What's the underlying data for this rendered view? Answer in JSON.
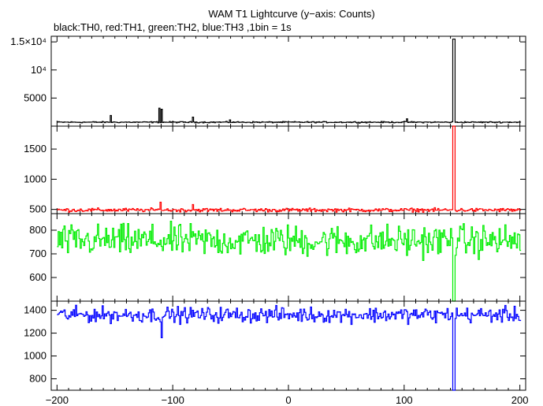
{
  "title": "WAM T1 Lightcurve (y−axis: Counts)",
  "subtitle": "black:TH0, red:TH1, green:TH2, blue:TH3 ,1bin = 1s",
  "chart_data": {
    "type": "line",
    "x_ticks": [
      "−200",
      "−100",
      "0",
      "100",
      "200"
    ],
    "x_tick_values": [
      -200,
      -100,
      0,
      100,
      200
    ],
    "xlim": [
      -205,
      205
    ],
    "panels": [
      {
        "name": "TH0",
        "color": "#000000",
        "ylim": [
          0,
          16000
        ],
        "y_tick_values": [
          5000,
          10000,
          15000
        ],
        "y_tick_labels": [
          "5000",
          "10⁴",
          "1.5×10⁴"
        ],
        "baseline": 700,
        "noise": 90,
        "burst_x": 142,
        "burst_peak": 15500,
        "features": [
          {
            "x": -154,
            "value": 1900
          },
          {
            "x": -112,
            "value": 3200
          },
          {
            "x": -110,
            "value": 3000
          },
          {
            "x": -83,
            "value": 1600
          },
          {
            "x": -51,
            "value": 1100
          },
          {
            "x": 102,
            "value": 1300
          }
        ]
      },
      {
        "name": "TH1",
        "color": "#ff0000",
        "ylim": [
          430,
          1880
        ],
        "y_tick_values": [
          500,
          1000,
          1500
        ],
        "y_tick_labels": [
          "500",
          "1000",
          "1500"
        ],
        "baseline": 490,
        "noise": 25,
        "burst_x": 142,
        "burst_peak": 1880,
        "features": [
          {
            "x": -111,
            "value": 620
          },
          {
            "x": -83,
            "value": 580
          }
        ]
      },
      {
        "name": "TH2",
        "color": "#00ee00",
        "ylim": [
          500,
          870
        ],
        "y_tick_values": [
          600,
          700,
          800
        ],
        "y_tick_labels": [
          "600",
          "700",
          "800"
        ],
        "baseline": 755,
        "noise": 55,
        "burst_x": 142,
        "burst_low": 500,
        "features": []
      },
      {
        "name": "TH3",
        "color": "#0000ff",
        "ylim": [
          700,
          1480
        ],
        "y_tick_values": [
          800,
          1000,
          1200,
          1400
        ],
        "y_tick_labels": [
          "800",
          "1000",
          "1200",
          "1400"
        ],
        "baseline": 1360,
        "noise": 55,
        "burst_x": 142,
        "burst_low": 700,
        "features": [
          {
            "x": -110,
            "value": 1160
          }
        ]
      }
    ]
  }
}
